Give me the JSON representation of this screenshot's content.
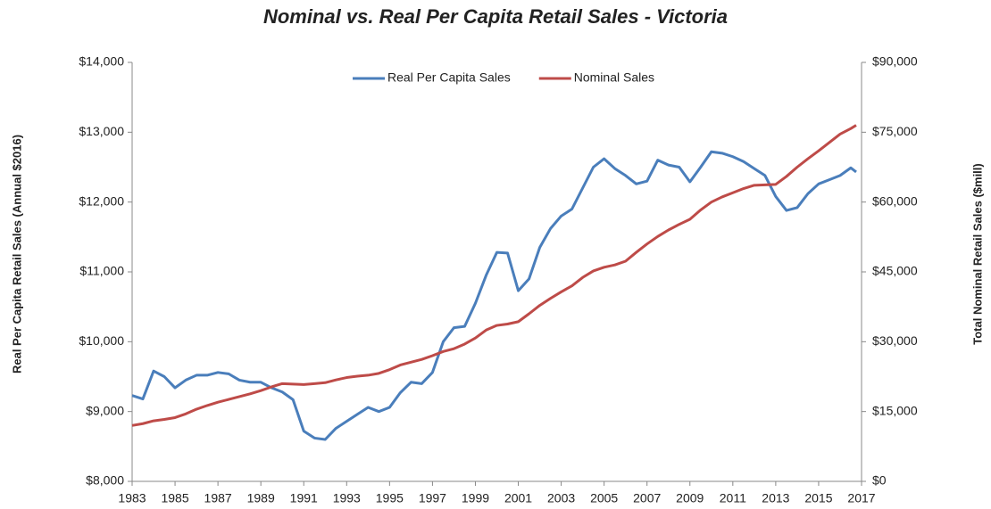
{
  "chart_data": {
    "type": "line",
    "title": "Nominal vs. Real Per Capita Retail Sales - Victoria",
    "y_label": "Real Per Capita Retail Sales (Annual $2016)",
    "y2_label": "Total Nominal Retail Sales ($mill)",
    "x": [
      1983,
      1983.5,
      1984,
      1984.5,
      1985,
      1985.5,
      1986,
      1986.5,
      1987,
      1987.5,
      1988,
      1988.5,
      1989,
      1989.5,
      1990,
      1990.5,
      1991,
      1991.5,
      1992,
      1992.5,
      1993,
      1993.5,
      1994,
      1994.5,
      1995,
      1995.5,
      1996,
      1996.5,
      1997,
      1997.5,
      1998,
      1998.5,
      1999,
      1999.5,
      2000,
      2000.5,
      2001,
      2001.5,
      2002,
      2002.5,
      2003,
      2003.5,
      2004,
      2004.5,
      2005,
      2005.5,
      2006,
      2006.5,
      2007,
      2007.5,
      2008,
      2008.5,
      2009,
      2009.5,
      2010,
      2010.5,
      2011,
      2011.5,
      2012,
      2012.5,
      2013,
      2013.5,
      2014,
      2014.5,
      2015,
      2015.5,
      2016,
      2016.5,
      2016.75
    ],
    "series": [
      {
        "name": "Real Per Capita Sales",
        "color": "#4a7ebb",
        "values": [
          9230,
          9180,
          9580,
          9500,
          9340,
          9450,
          9520,
          9520,
          9560,
          9540,
          9450,
          9420,
          9420,
          9340,
          9280,
          9170,
          8720,
          8620,
          8600,
          8760,
          8860,
          8960,
          9060,
          9000,
          9060,
          9270,
          9420,
          9400,
          9560,
          10000,
          10200,
          10220,
          10550,
          10950,
          11280,
          11270,
          10730,
          10900,
          11350,
          11620,
          11800,
          11900,
          12200,
          12500,
          12620,
          12480,
          12380,
          12260,
          12300,
          12600,
          12530,
          12500,
          12290,
          12500,
          12720,
          12700,
          12650,
          12580,
          12480,
          12380,
          12080,
          11880,
          11920,
          12120,
          12260,
          12320,
          12380,
          12490,
          12430
        ]
      },
      {
        "name": "Nominal Sales",
        "color": "#be4b48",
        "axis": "y2",
        "values": [
          12000,
          12400,
          13000,
          13300,
          13700,
          14500,
          15500,
          16300,
          17000,
          17600,
          18200,
          18800,
          19500,
          20300,
          21000,
          20900,
          20800,
          21000,
          21200,
          21800,
          22300,
          22600,
          22800,
          23200,
          24000,
          25000,
          25600,
          26200,
          27000,
          27900,
          28500,
          29500,
          30800,
          32500,
          33500,
          33800,
          34300,
          36000,
          37800,
          39300,
          40700,
          42000,
          43800,
          45200,
          46000,
          46500,
          47300,
          49200,
          51000,
          52600,
          54000,
          55200,
          56300,
          58300,
          60000,
          61100,
          62000,
          62900,
          63600,
          63700,
          63800,
          65500,
          67500,
          69300,
          71000,
          72800,
          74600,
          75800,
          76500
        ]
      }
    ],
    "xlim": [
      1983,
      2017
    ],
    "xticks": [
      1983,
      1985,
      1987,
      1989,
      1991,
      1993,
      1995,
      1997,
      1999,
      2001,
      2003,
      2005,
      2007,
      2009,
      2011,
      2013,
      2015,
      2017
    ],
    "ylim": [
      8000,
      14000
    ],
    "yticks": [
      {
        "value": 8000,
        "label": "$8,000"
      },
      {
        "value": 9000,
        "label": "$9,000"
      },
      {
        "value": 10000,
        "label": "$10,000"
      },
      {
        "value": 11000,
        "label": "$11,000"
      },
      {
        "value": 12000,
        "label": "$12,000"
      },
      {
        "value": 13000,
        "label": "$13,000"
      },
      {
        "value": 14000,
        "label": "$14,000"
      }
    ],
    "y2lim": [
      0,
      90000
    ],
    "y2ticks": [
      {
        "value": 0,
        "label": "$0"
      },
      {
        "value": 15000,
        "label": "$15,000"
      },
      {
        "value": 30000,
        "label": "$30,000"
      },
      {
        "value": 45000,
        "label": "$45,000"
      },
      {
        "value": 60000,
        "label": "$60,000"
      },
      {
        "value": 75000,
        "label": "$75,000"
      },
      {
        "value": 90000,
        "label": "$90,000"
      }
    ],
    "grid": false,
    "legend": "top"
  }
}
